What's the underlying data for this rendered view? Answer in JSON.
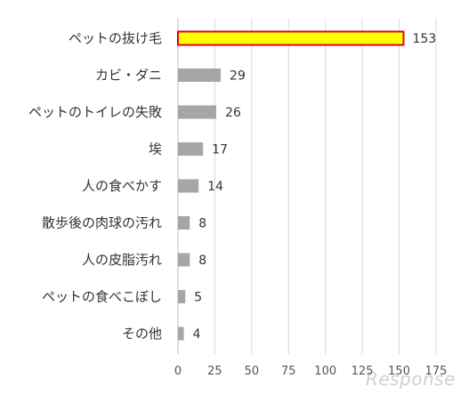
{
  "chart_data": {
    "type": "bar",
    "orientation": "horizontal",
    "categories": [
      "ペットの抜け毛",
      "カビ・ダニ",
      "ペットのトイレの失敗",
      "埃",
      "人の食べかす",
      "散歩後の肉球の汚れ",
      "人の皮脂汚れ",
      "ペットの食べこぼし",
      "その他"
    ],
    "values": [
      153,
      29,
      26,
      17,
      14,
      8,
      8,
      5,
      4
    ],
    "xlim": [
      0,
      175
    ],
    "xticks": [
      0,
      25,
      50,
      75,
      100,
      125,
      150,
      175
    ],
    "grid": true,
    "highlight_index": 0,
    "title": "",
    "xlabel": "",
    "ylabel": ""
  },
  "colors": {
    "bar": "#a6a6a6",
    "highlight_fill": "#ffff00",
    "highlight_stroke": "#e0001b"
  },
  "watermark": "Response"
}
